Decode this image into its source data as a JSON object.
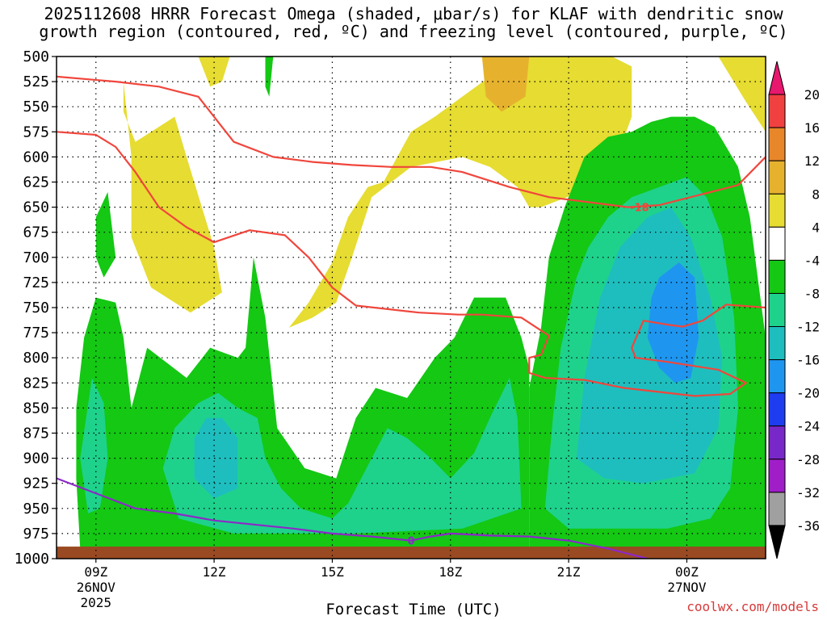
{
  "header": {
    "title_line1": "2025112608 HRRR Forecast Omega (shaded, μbar/s) for KLAF with dendritic snow",
    "title_line2": "growth region (contoured, red, ºC) and freezing level (contoured, purple, ºC)"
  },
  "footer": {
    "link": "coolwx.com/models"
  },
  "chart_data": {
    "type": "heatmap",
    "title": "2025112608 HRRR Forecast Omega (shaded, μbar/s) for KLAF with dendritic snow growth region (contoured, red, ºC) and freezing level (contoured, purple, ºC)",
    "xlabel": "Forecast Time (UTC)",
    "ylabel": "",
    "x_range_hours": [
      8,
      26
    ],
    "y_range_hPa": [
      500,
      1000
    ],
    "y_ticks": [
      500,
      525,
      550,
      575,
      600,
      625,
      650,
      675,
      700,
      725,
      750,
      775,
      800,
      825,
      850,
      875,
      900,
      925,
      950,
      975,
      1000
    ],
    "x_ticks": [
      {
        "hour": 9,
        "label": "09Z",
        "sub1": "26NOV",
        "sub2": "2025"
      },
      {
        "hour": 12,
        "label": "12Z"
      },
      {
        "hour": 15,
        "label": "15Z"
      },
      {
        "hour": 18,
        "label": "18Z"
      },
      {
        "hour": 21,
        "label": "21Z"
      },
      {
        "hour": 24,
        "label": "00Z",
        "sub1": "27NOV"
      }
    ],
    "grid": "dotted",
    "colorbar": {
      "labels": [
        "20",
        "16",
        "12",
        "8",
        "4",
        "-4",
        "-8",
        "-12",
        "-16",
        "-20",
        "-24",
        "-28",
        "-32",
        "-36"
      ],
      "colors": [
        "#e8186e",
        "#f04040",
        "#e8862a",
        "#e6b22e",
        "#e6dc32",
        "#ffffff",
        "#14c814",
        "#1ed28c",
        "#1ebebe",
        "#1e96f0",
        "#1e3cf0",
        "#7828c8",
        "#a01ec8",
        "#a0a0a0",
        "#000000"
      ]
    },
    "omega_regions": [
      {
        "level": "+4",
        "color": "#e6dc32",
        "polygon": [
          [
            9.7,
            525
          ],
          [
            9.7,
            555
          ],
          [
            10.0,
            585
          ],
          [
            11.0,
            560
          ],
          [
            11.3,
            600
          ],
          [
            12.0,
            690
          ],
          [
            12.2,
            735
          ],
          [
            11.4,
            755
          ],
          [
            10.4,
            730
          ],
          [
            9.9,
            680
          ],
          [
            9.9,
            600
          ]
        ]
      },
      {
        "level": "+4",
        "color": "#e6dc32",
        "polygon": [
          [
            13.9,
            770
          ],
          [
            14.4,
            745
          ],
          [
            15.0,
            705
          ],
          [
            15.4,
            660
          ],
          [
            15.9,
            630
          ],
          [
            16.3,
            625
          ],
          [
            17.0,
            575
          ],
          [
            17.6,
            560
          ],
          [
            18.3,
            540
          ],
          [
            19.0,
            520
          ],
          [
            20.0,
            500
          ],
          [
            22.1,
            500
          ],
          [
            22.6,
            510
          ],
          [
            22.6,
            560
          ],
          [
            22.0,
            625
          ],
          [
            21.3,
            635
          ],
          [
            20.3,
            650
          ],
          [
            20.0,
            650
          ],
          [
            19.7,
            630
          ],
          [
            19.0,
            610
          ],
          [
            18.3,
            600
          ],
          [
            17.0,
            610
          ],
          [
            16.0,
            640
          ],
          [
            15.5,
            700
          ],
          [
            15.1,
            745
          ],
          [
            14.5,
            760
          ]
        ]
      },
      {
        "level": "+4",
        "color": "#e6dc32",
        "polygon": [
          [
            24.8,
            500
          ],
          [
            25.5,
            545
          ],
          [
            26.0,
            575
          ],
          [
            26.0,
            500
          ]
        ]
      },
      {
        "level": "+4",
        "color": "#e6dc32",
        "polygon": [
          [
            11.6,
            500
          ],
          [
            11.9,
            530
          ],
          [
            12.2,
            525
          ],
          [
            12.4,
            500
          ]
        ]
      },
      {
        "level": "+12",
        "color": "#e6b22e",
        "polygon": [
          [
            18.8,
            500
          ],
          [
            18.9,
            540
          ],
          [
            19.3,
            555
          ],
          [
            19.9,
            540
          ],
          [
            20.0,
            500
          ]
        ]
      },
      {
        "level": "-4",
        "color": "#14c814",
        "polygon": [
          [
            8.6,
            990
          ],
          [
            8.5,
            920
          ],
          [
            8.5,
            850
          ],
          [
            8.7,
            780
          ],
          [
            9.0,
            740
          ],
          [
            9.5,
            745
          ],
          [
            9.7,
            780
          ],
          [
            9.9,
            850
          ],
          [
            10.1,
            820
          ],
          [
            10.3,
            790
          ],
          [
            10.8,
            805
          ],
          [
            11.3,
            820
          ],
          [
            11.9,
            790
          ],
          [
            12.6,
            800
          ],
          [
            12.8,
            790
          ],
          [
            13.0,
            700
          ],
          [
            13.3,
            760
          ],
          [
            13.6,
            870
          ],
          [
            14.3,
            910
          ],
          [
            15.1,
            920
          ],
          [
            15.6,
            860
          ],
          [
            16.1,
            830
          ],
          [
            16.9,
            840
          ],
          [
            17.6,
            800
          ],
          [
            18.1,
            780
          ],
          [
            18.6,
            740
          ],
          [
            19.4,
            740
          ],
          [
            19.8,
            780
          ],
          [
            20.0,
            810
          ],
          [
            20.0,
            990
          ]
        ]
      },
      {
        "level": "-4",
        "color": "#14c814",
        "polygon": [
          [
            9.0,
            660
          ],
          [
            9.3,
            635
          ],
          [
            9.5,
            700
          ],
          [
            9.2,
            720
          ],
          [
            9.0,
            700
          ]
        ]
      },
      {
        "level": "-4",
        "color": "#14c814",
        "polygon": [
          [
            13.3,
            500
          ],
          [
            13.5,
            500
          ],
          [
            13.4,
            540
          ],
          [
            13.3,
            530
          ]
        ]
      },
      {
        "level": "-4",
        "color": "#14c814",
        "polygon": [
          [
            20.0,
            990
          ],
          [
            20.0,
            830
          ],
          [
            20.3,
            770
          ],
          [
            20.5,
            700
          ],
          [
            20.9,
            650
          ],
          [
            21.4,
            600
          ],
          [
            22.0,
            580
          ],
          [
            22.6,
            575
          ],
          [
            23.1,
            565
          ],
          [
            23.6,
            560
          ],
          [
            24.2,
            560
          ],
          [
            24.7,
            570
          ],
          [
            25.3,
            610
          ],
          [
            25.6,
            660
          ],
          [
            25.8,
            720
          ],
          [
            26.0,
            780
          ],
          [
            26.0,
            990
          ]
        ]
      },
      {
        "level": "-8",
        "color": "#1ed28c",
        "polygon": [
          [
            8.6,
            900
          ],
          [
            8.9,
            820
          ],
          [
            9.2,
            845
          ],
          [
            9.3,
            900
          ],
          [
            9.1,
            950
          ],
          [
            8.8,
            955
          ]
        ]
      },
      {
        "level": "-8",
        "color": "#1ed28c",
        "polygon": [
          [
            10.7,
            910
          ],
          [
            11.0,
            870
          ],
          [
            11.6,
            845
          ],
          [
            12.1,
            835
          ],
          [
            12.6,
            850
          ],
          [
            13.1,
            860
          ],
          [
            13.3,
            900
          ],
          [
            13.7,
            930
          ],
          [
            14.2,
            950
          ],
          [
            15.0,
            960
          ],
          [
            15.4,
            945
          ],
          [
            16.0,
            900
          ],
          [
            16.4,
            870
          ],
          [
            16.9,
            880
          ],
          [
            17.5,
            900
          ],
          [
            18.0,
            920
          ],
          [
            18.6,
            895
          ],
          [
            19.0,
            860
          ],
          [
            19.5,
            820
          ],
          [
            19.7,
            860
          ],
          [
            19.8,
            950
          ],
          [
            18.3,
            970
          ],
          [
            15.6,
            975
          ],
          [
            12.5,
            975
          ],
          [
            11.1,
            960
          ]
        ]
      },
      {
        "level": "-8",
        "color": "#1ed28c",
        "polygon": [
          [
            20.4,
            950
          ],
          [
            20.6,
            860
          ],
          [
            20.8,
            790
          ],
          [
            21.2,
            720
          ],
          [
            21.5,
            690
          ],
          [
            22.0,
            660
          ],
          [
            22.6,
            640
          ],
          [
            23.3,
            630
          ],
          [
            24.0,
            620
          ],
          [
            24.5,
            640
          ],
          [
            24.9,
            680
          ],
          [
            25.2,
            760
          ],
          [
            25.3,
            850
          ],
          [
            25.1,
            930
          ],
          [
            24.6,
            960
          ],
          [
            23.5,
            970
          ],
          [
            21.0,
            970
          ]
        ]
      },
      {
        "level": "-12",
        "color": "#1ebebe",
        "polygon": [
          [
            11.5,
            880
          ],
          [
            11.8,
            860
          ],
          [
            12.2,
            860
          ],
          [
            12.6,
            880
          ],
          [
            12.6,
            930
          ],
          [
            12.0,
            940
          ],
          [
            11.5,
            920
          ]
        ]
      },
      {
        "level": "-12",
        "color": "#1ebebe",
        "polygon": [
          [
            21.2,
            900
          ],
          [
            21.4,
            820
          ],
          [
            21.8,
            740
          ],
          [
            22.3,
            690
          ],
          [
            23.0,
            660
          ],
          [
            23.6,
            650
          ],
          [
            24.1,
            680
          ],
          [
            24.6,
            740
          ],
          [
            24.9,
            800
          ],
          [
            24.8,
            870
          ],
          [
            24.2,
            915
          ],
          [
            22.9,
            925
          ],
          [
            21.9,
            920
          ]
        ]
      },
      {
        "level": "-16",
        "color": "#1e96f0",
        "polygon": [
          [
            23.3,
            720
          ],
          [
            23.8,
            705
          ],
          [
            24.2,
            720
          ],
          [
            24.3,
            780
          ],
          [
            24.1,
            820
          ],
          [
            23.7,
            825
          ],
          [
            23.3,
            810
          ],
          [
            23.0,
            780
          ],
          [
            23.1,
            740
          ]
        ]
      }
    ],
    "dgz_contours": [
      {
        "label": "-18",
        "points": [
          [
            8,
            520
          ],
          [
            9.5,
            525
          ],
          [
            10.6,
            530
          ],
          [
            11.6,
            540
          ],
          [
            12.1,
            565
          ],
          [
            12.5,
            585
          ],
          [
            13.5,
            600
          ],
          [
            14.5,
            605
          ],
          [
            15.5,
            608
          ],
          [
            16.5,
            610
          ],
          [
            17.5,
            610
          ],
          [
            18.3,
            615
          ],
          [
            19.5,
            630
          ],
          [
            20.5,
            640
          ],
          [
            21.5,
            645
          ],
          [
            22.5,
            650
          ],
          [
            23.3,
            648
          ],
          [
            24.1,
            640
          ],
          [
            25.3,
            628
          ],
          [
            26,
            600
          ]
        ]
      },
      {
        "label": "",
        "points": [
          [
            8,
            575
          ],
          [
            9.0,
            578
          ],
          [
            9.5,
            590
          ],
          [
            10.0,
            615
          ],
          [
            10.6,
            650
          ],
          [
            11.3,
            670
          ],
          [
            12.0,
            685
          ],
          [
            12.9,
            673
          ],
          [
            13.8,
            678
          ],
          [
            14.4,
            700
          ],
          [
            15.0,
            730
          ],
          [
            15.6,
            748
          ],
          [
            17.2,
            755
          ],
          [
            18.2,
            757
          ],
          [
            18.8,
            757
          ],
          [
            19.8,
            760
          ],
          [
            20.5,
            778
          ],
          [
            20.3,
            797
          ],
          [
            20.0,
            800
          ],
          [
            20.0,
            815
          ],
          [
            20.4,
            820
          ],
          [
            21.4,
            822
          ],
          [
            22.4,
            830
          ],
          [
            23.3,
            834
          ],
          [
            24.2,
            838
          ],
          [
            25.1,
            836
          ],
          [
            25.5,
            825
          ],
          [
            24.8,
            812
          ],
          [
            23.5,
            804
          ],
          [
            22.7,
            800
          ],
          [
            22.6,
            790
          ],
          [
            22.9,
            763
          ],
          [
            23.5,
            767
          ],
          [
            23.9,
            769
          ],
          [
            24.4,
            763
          ],
          [
            25.0,
            747
          ],
          [
            26,
            750
          ]
        ]
      }
    ],
    "freezing_level_contour": {
      "label": "0",
      "points": [
        [
          8,
          920
        ],
        [
          9.0,
          935
        ],
        [
          10.0,
          950
        ],
        [
          11.0,
          955
        ],
        [
          12.0,
          962
        ],
        [
          13.0,
          966
        ],
        [
          14.0,
          970
        ],
        [
          15.0,
          975
        ],
        [
          16.0,
          978
        ],
        [
          17.0,
          982
        ],
        [
          17.5,
          978
        ],
        [
          18.0,
          975
        ],
        [
          19.0,
          977
        ],
        [
          20.0,
          978
        ],
        [
          21.0,
          982
        ],
        [
          22.0,
          990
        ],
        [
          23.0,
          1000
        ]
      ]
    },
    "ground_top_hPa": 988
  }
}
